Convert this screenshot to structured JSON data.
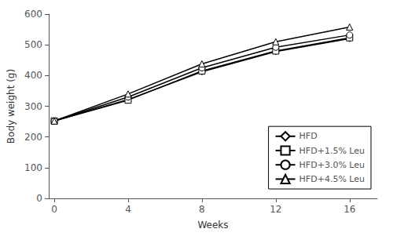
{
  "chart_data": {
    "type": "line",
    "x": [
      0,
      4,
      8,
      12,
      16
    ],
    "series": [
      {
        "name": "HFD",
        "color": "#000000",
        "marker": "diamond",
        "values": [
          252,
          322,
          412,
          478,
          520
        ]
      },
      {
        "name": "HFD+1.5% Leu",
        "color": "#000000",
        "marker": "square",
        "values": [
          252,
          320,
          415,
          480,
          523
        ]
      },
      {
        "name": "HFD+3.0% Leu",
        "color": "#000000",
        "marker": "circle",
        "values": [
          252,
          330,
          425,
          492,
          532
        ]
      },
      {
        "name": "HFD+4.5% Leu",
        "color": "#000000",
        "marker": "triangle",
        "values": [
          252,
          340,
          438,
          510,
          558
        ]
      }
    ],
    "xlabel": "Weeks",
    "ylabel": "Body weight (g)",
    "xlim": [
      -0.3,
      17.5
    ],
    "xticks": [
      0,
      4,
      8,
      12,
      16
    ],
    "ylim": [
      0,
      600
    ],
    "yticks": [
      0,
      100,
      200,
      300,
      400,
      500,
      600
    ],
    "grid": false,
    "legend": "lower right"
  }
}
